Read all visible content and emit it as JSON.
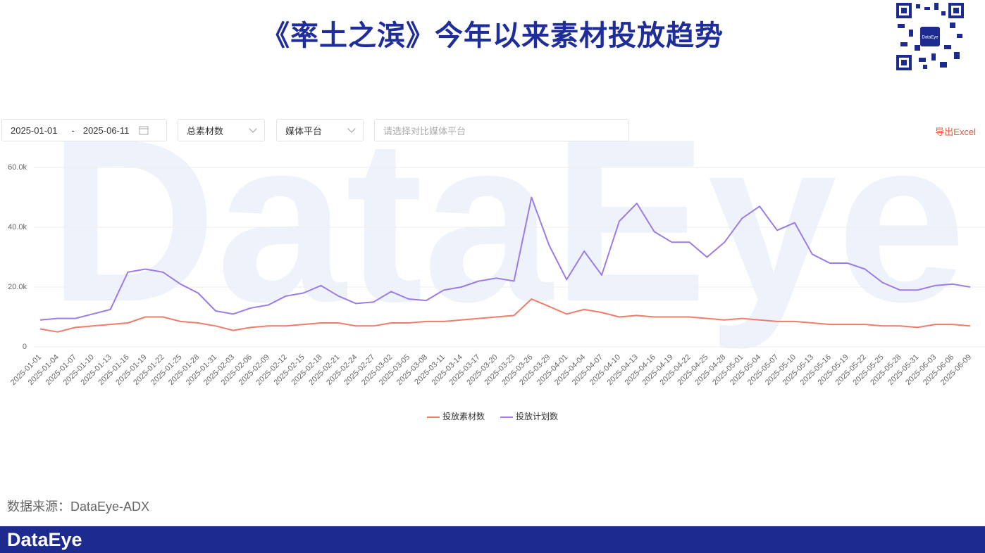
{
  "header": {
    "title": "《率土之滨》今年以来素材投放趋势",
    "qr_label": "DataEye"
  },
  "controls": {
    "start_date": "2025-01-01",
    "separator": "-",
    "end_date": "2025-06-11",
    "metric": "总素材数",
    "platform": "媒体平台",
    "compare_placeholder": "请选择对比媒体平台",
    "export": "导出Excel"
  },
  "watermark": "DataEye",
  "source": "数据来源：DataEye-ADX",
  "footer": {
    "logo": "DataEye"
  },
  "chart_data": {
    "type": "line",
    "categories": [
      "2025-01-01",
      "2025-01-04",
      "2025-01-07",
      "2025-01-10",
      "2025-01-13",
      "2025-01-16",
      "2025-01-19",
      "2025-01-22",
      "2025-01-25",
      "2025-01-28",
      "2025-01-31",
      "2025-02-03",
      "2025-02-06",
      "2025-02-09",
      "2025-02-12",
      "2025-02-15",
      "2025-02-18",
      "2025-02-21",
      "2025-02-24",
      "2025-02-27",
      "2025-03-02",
      "2025-03-05",
      "2025-03-08",
      "2025-03-11",
      "2025-03-14",
      "2025-03-17",
      "2025-03-20",
      "2025-03-23",
      "2025-03-26",
      "2025-03-29",
      "2025-04-01",
      "2025-04-04",
      "2025-04-07",
      "2025-04-10",
      "2025-04-13",
      "2025-04-16",
      "2025-04-19",
      "2025-04-22",
      "2025-04-25",
      "2025-04-28",
      "2025-05-01",
      "2025-05-04",
      "2025-05-07",
      "2025-05-10",
      "2025-05-13",
      "2025-05-16",
      "2025-05-19",
      "2025-05-22",
      "2025-05-25",
      "2025-05-28",
      "2025-05-31",
      "2025-06-03",
      "2025-06-06",
      "2025-06-09"
    ],
    "series": [
      {
        "name": "投放素材数",
        "color": "#ee7d6b",
        "values": [
          6000,
          5000,
          6500,
          7000,
          7500,
          8000,
          10000,
          10000,
          8500,
          8000,
          7000,
          5500,
          6500,
          7000,
          7000,
          7500,
          8000,
          8000,
          7000,
          7000,
          8000,
          8000,
          8500,
          8500,
          9000,
          9500,
          10000,
          10500,
          16000,
          13500,
          11000,
          12500,
          11500,
          10000,
          10500,
          10000,
          10000,
          10000,
          9500,
          9000,
          9500,
          9000,
          8500,
          8500,
          8000,
          7500,
          7500,
          7500,
          7000,
          7000,
          6500,
          7500,
          7500,
          7000
        ]
      },
      {
        "name": "投放计划数",
        "color": "#9b7be8",
        "values": [
          9000,
          9500,
          9500,
          11000,
          12500,
          25000,
          26000,
          25000,
          21000,
          18000,
          12000,
          11000,
          13000,
          14000,
          17000,
          18000,
          20500,
          17000,
          14500,
          15000,
          18500,
          16000,
          15500,
          19000,
          20000,
          22000,
          23000,
          22000,
          50000,
          34000,
          22500,
          32000,
          24000,
          42000,
          48000,
          38500,
          35000,
          35000,
          30000,
          35000,
          43000,
          47000,
          39000,
          41500,
          31000,
          28000,
          28000,
          26000,
          21500,
          19000,
          19000,
          20500,
          21000,
          20000
        ]
      }
    ],
    "ylim": [
      0,
      60000
    ],
    "yticks": [
      0,
      {
        "value": 20000,
        "label": "20.0k"
      },
      {
        "value": 40000,
        "label": "40.0k"
      },
      {
        "value": 60000,
        "label": "60.0k"
      }
    ],
    "grid": true,
    "legend": "bottom"
  }
}
